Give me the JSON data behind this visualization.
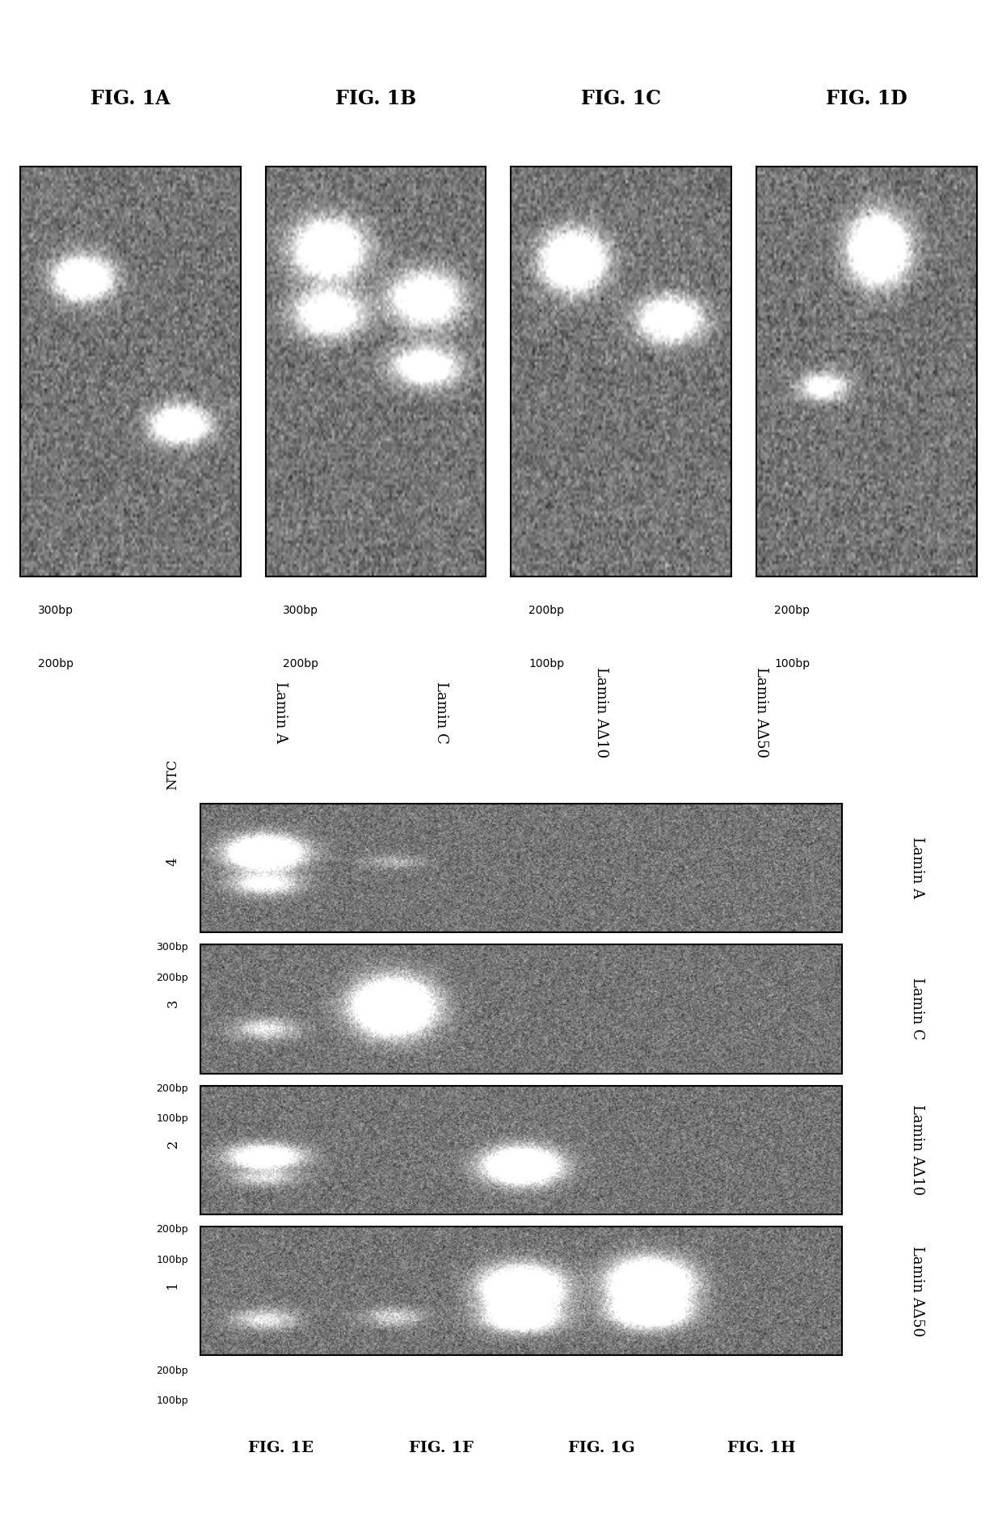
{
  "fig_labels_top": [
    "FIG. 1A",
    "FIG. 1B",
    "FIG. 1C",
    "FIG. 1D"
  ],
  "fig_labels_bottom": [
    "FIG. 1E",
    "FIG. 1F",
    "FIG. 1G",
    "FIG. 1H"
  ],
  "row_labels_bottom": [
    "Lamin A",
    "Lamin C",
    "Lamin AΔ10",
    "Lamin AΔ50"
  ],
  "lane_labels": [
    "1",
    "2",
    "3",
    "4",
    "NTC"
  ],
  "bp_top": {
    "1A": [
      "300bp",
      "200bp"
    ],
    "1B": [
      "300bp",
      "200bp"
    ],
    "1C": [
      "200bp",
      "100bp"
    ],
    "1D": [
      "200bp",
      "100bp"
    ]
  },
  "bp_bottom": {
    "1E": [
      "300bp",
      "200bp"
    ],
    "1F": [
      "200bp",
      "100bp"
    ],
    "1G": [
      "200bp",
      "100bp"
    ],
    "1H": [
      "200bp",
      "100bp"
    ]
  },
  "background": "#ffffff",
  "gel_bg_level": 0.46,
  "gel_noise": 0.09
}
